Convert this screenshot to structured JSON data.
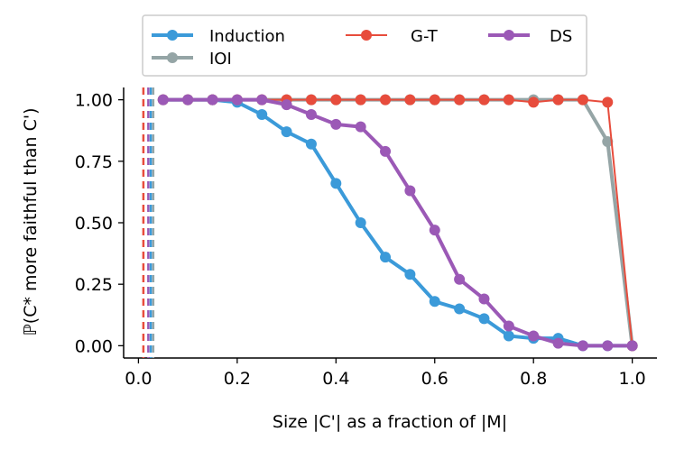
{
  "chart_data": {
    "type": "line",
    "xlabel": "Size |C'| as a fraction of |M|",
    "ylabel": "ℙ(C* more faithful than C')",
    "xlim": [
      -0.03,
      1.05
    ],
    "ylim": [
      -0.05,
      1.05
    ],
    "xticks": [
      0.0,
      0.2,
      0.4,
      0.6,
      0.8,
      1.0
    ],
    "xtick_labels": [
      "0.0",
      "0.2",
      "0.4",
      "0.6",
      "0.8",
      "1.0"
    ],
    "yticks": [
      0.0,
      0.25,
      0.5,
      0.75,
      1.0
    ],
    "ytick_labels": [
      "0.00",
      "0.25",
      "0.50",
      "0.75",
      "1.00"
    ],
    "legend_position": "top",
    "series": [
      {
        "name": "Induction",
        "color": "#3b9ad9",
        "x": [
          0.05,
          0.1,
          0.15,
          0.2,
          0.25,
          0.3,
          0.35,
          0.4,
          0.45,
          0.5,
          0.55,
          0.6,
          0.65,
          0.7,
          0.75,
          0.8,
          0.85,
          0.9,
          0.95,
          1.0
        ],
        "y": [
          1.0,
          1.0,
          1.0,
          0.99,
          0.94,
          0.87,
          0.82,
          0.66,
          0.5,
          0.36,
          0.29,
          0.18,
          0.15,
          0.11,
          0.04,
          0.03,
          0.03,
          0.0,
          0.0,
          0.0
        ],
        "vline_x": 0.025
      },
      {
        "name": "IOI",
        "color": "#95a5a6",
        "x": [
          0.05,
          0.1,
          0.15,
          0.2,
          0.25,
          0.3,
          0.35,
          0.4,
          0.45,
          0.5,
          0.55,
          0.6,
          0.65,
          0.7,
          0.75,
          0.8,
          0.85,
          0.9,
          0.95,
          1.0
        ],
        "y": [
          1.0,
          1.0,
          1.0,
          1.0,
          1.0,
          1.0,
          1.0,
          1.0,
          1.0,
          1.0,
          1.0,
          1.0,
          1.0,
          1.0,
          1.0,
          1.0,
          1.0,
          1.0,
          0.83,
          0.0
        ],
        "vline_x": 0.03
      },
      {
        "name": "G-T",
        "color": "#e74c3c",
        "x": [
          0.05,
          0.1,
          0.15,
          0.2,
          0.25,
          0.3,
          0.35,
          0.4,
          0.45,
          0.5,
          0.55,
          0.6,
          0.65,
          0.7,
          0.75,
          0.8,
          0.85,
          0.9,
          0.95,
          1.0
        ],
        "y": [
          1.0,
          1.0,
          1.0,
          1.0,
          1.0,
          1.0,
          1.0,
          1.0,
          1.0,
          1.0,
          1.0,
          1.0,
          1.0,
          1.0,
          1.0,
          0.99,
          1.0,
          1.0,
          0.99,
          0.0
        ],
        "vline_x": 0.01
      },
      {
        "name": "DS",
        "color": "#9b59b6",
        "x": [
          0.05,
          0.1,
          0.15,
          0.2,
          0.25,
          0.3,
          0.35,
          0.4,
          0.45,
          0.5,
          0.55,
          0.6,
          0.65,
          0.7,
          0.75,
          0.8,
          0.85,
          0.9,
          0.95,
          1.0
        ],
        "y": [
          1.0,
          1.0,
          1.0,
          1.0,
          1.0,
          0.98,
          0.94,
          0.9,
          0.89,
          0.79,
          0.63,
          0.47,
          0.27,
          0.19,
          0.08,
          0.04,
          0.01,
          0.0,
          0.0,
          0.0
        ],
        "vline_x": 0.02
      }
    ]
  }
}
